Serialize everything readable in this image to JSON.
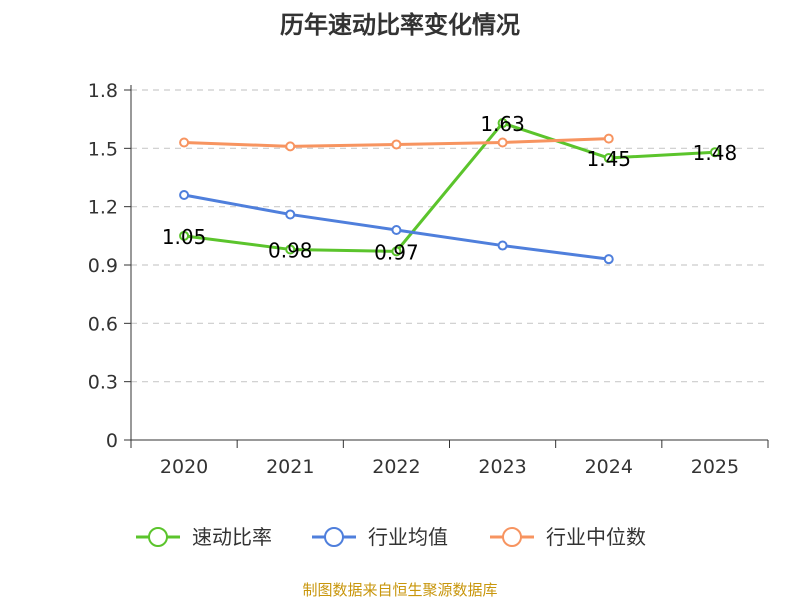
{
  "chart_data": {
    "type": "line",
    "title": "历年速动比率变化情况",
    "categories": [
      "2020",
      "2021",
      "2022",
      "2023",
      "2024",
      "2025"
    ],
    "yticks": [
      "0",
      "0.3",
      "0.6",
      "0.9",
      "1.2",
      "1.5",
      "1.8"
    ],
    "ylim": [
      0,
      1.8
    ],
    "grid": true,
    "legend_position": "bottom",
    "series": [
      {
        "name": "速动比率",
        "color": "#5bc42c",
        "values": [
          1.05,
          0.98,
          0.97,
          1.63,
          1.45,
          1.48
        ],
        "labels": [
          "1.05",
          "0.98",
          "0.97",
          "1.63",
          "1.45",
          "1.48"
        ],
        "show_labels": true
      },
      {
        "name": "行业均值",
        "color": "#4f7fdc",
        "values": [
          1.26,
          1.16,
          1.08,
          1.0,
          0.93,
          null
        ],
        "show_labels": false
      },
      {
        "name": "行业中位数",
        "color": "#f79460",
        "values": [
          1.53,
          1.51,
          1.52,
          1.53,
          1.55,
          null
        ],
        "show_labels": false
      }
    ],
    "source": "制图数据来自恒生聚源数据库"
  }
}
